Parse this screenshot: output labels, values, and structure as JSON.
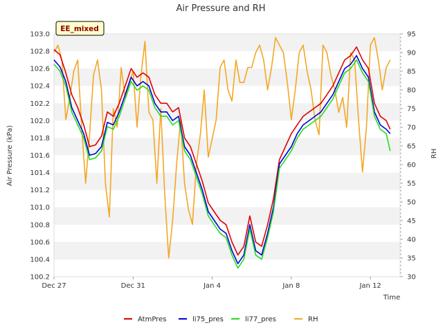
{
  "chart_data": {
    "type": "line",
    "title": "Air Pressure and RH",
    "badge": "EE_mixed",
    "xlabel": "Time",
    "ylabel": "Air Pressure (kPa)",
    "y2label": "RH",
    "x_ticks": [
      "Dec 27",
      "Dec 31",
      "Jan 4",
      "Jan 8",
      "Jan 12"
    ],
    "x_tick_days": [
      0,
      4,
      8,
      12,
      16
    ],
    "xlim": [
      0,
      17.5
    ],
    "ylim": [
      100.2,
      103.0
    ],
    "y_ticks": [
      "100.2",
      "100.4",
      "100.6",
      "100.8",
      "101.0",
      "101.2",
      "101.4",
      "101.6",
      "101.8",
      "102.0",
      "102.2",
      "102.4",
      "102.6",
      "102.8",
      "103.0"
    ],
    "y2lim": [
      30,
      95
    ],
    "y2_ticks": [
      "30",
      "35",
      "40",
      "45",
      "50",
      "55",
      "60",
      "65",
      "70",
      "75",
      "80",
      "85",
      "90",
      "95"
    ],
    "grid": "horizontal bands",
    "legend": "bottom",
    "series": [
      {
        "name": "AtmPres",
        "color": "#dd0000",
        "axis": "left",
        "x": [
          0,
          0.3,
          0.6,
          0.9,
          1.2,
          1.5,
          1.8,
          2.1,
          2.4,
          2.7,
          3.0,
          3.3,
          3.6,
          3.9,
          4.2,
          4.5,
          4.8,
          5.1,
          5.4,
          5.7,
          6.0,
          6.3,
          6.6,
          6.9,
          7.2,
          7.5,
          7.8,
          8.1,
          8.4,
          8.7,
          9.0,
          9.3,
          9.6,
          9.9,
          10.2,
          10.5,
          10.8,
          11.1,
          11.4,
          11.7,
          12.0,
          12.3,
          12.6,
          12.9,
          13.2,
          13.5,
          13.8,
          14.1,
          14.4,
          14.7,
          15.0,
          15.3,
          15.6,
          15.9,
          16.2,
          16.5,
          16.8,
          17.0
        ],
        "y": [
          102.82,
          102.76,
          102.55,
          102.3,
          102.15,
          101.95,
          101.7,
          101.72,
          101.82,
          102.1,
          102.05,
          102.2,
          102.4,
          102.6,
          102.5,
          102.55,
          102.5,
          102.3,
          102.2,
          102.2,
          102.1,
          102.15,
          101.8,
          101.7,
          101.5,
          101.3,
          101.05,
          100.95,
          100.85,
          100.8,
          100.6,
          100.45,
          100.55,
          100.9,
          100.6,
          100.55,
          100.8,
          101.1,
          101.55,
          101.7,
          101.85,
          101.95,
          102.05,
          102.1,
          102.15,
          102.2,
          102.3,
          102.4,
          102.55,
          102.7,
          102.75,
          102.85,
          102.7,
          102.6,
          102.2,
          102.05,
          102.0,
          101.9
        ]
      },
      {
        "name": "li75_pres",
        "color": "#0000dd",
        "axis": "left",
        "x": [
          0,
          0.3,
          0.6,
          0.9,
          1.2,
          1.5,
          1.8,
          2.1,
          2.4,
          2.7,
          3.0,
          3.3,
          3.6,
          3.9,
          4.2,
          4.5,
          4.8,
          5.1,
          5.4,
          5.7,
          6.0,
          6.3,
          6.6,
          6.9,
          7.2,
          7.5,
          7.8,
          8.1,
          8.4,
          8.7,
          9.0,
          9.3,
          9.6,
          9.9,
          10.2,
          10.5,
          10.8,
          11.1,
          11.4,
          11.7,
          12.0,
          12.3,
          12.6,
          12.9,
          13.2,
          13.5,
          13.8,
          14.1,
          14.4,
          14.7,
          15.0,
          15.3,
          15.6,
          15.9,
          16.2,
          16.5,
          16.8,
          17.0
        ],
        "y": [
          102.7,
          102.62,
          102.45,
          102.15,
          102.0,
          101.85,
          101.6,
          101.62,
          101.7,
          101.98,
          101.95,
          102.1,
          102.3,
          102.5,
          102.4,
          102.45,
          102.4,
          102.2,
          102.1,
          102.1,
          102.0,
          102.05,
          101.7,
          101.6,
          101.4,
          101.2,
          100.95,
          100.85,
          100.75,
          100.7,
          100.5,
          100.35,
          100.45,
          100.8,
          100.5,
          100.45,
          100.7,
          101.0,
          101.5,
          101.6,
          101.7,
          101.85,
          101.95,
          102.0,
          102.05,
          102.1,
          102.2,
          102.3,
          102.45,
          102.6,
          102.65,
          102.75,
          102.6,
          102.5,
          102.1,
          101.95,
          101.9,
          101.85
        ]
      },
      {
        "name": "li77_pres",
        "color": "#22dd22",
        "axis": "left",
        "x": [
          0,
          0.3,
          0.6,
          0.9,
          1.2,
          1.5,
          1.8,
          2.1,
          2.4,
          2.7,
          3.0,
          3.3,
          3.6,
          3.9,
          4.2,
          4.5,
          4.8,
          5.1,
          5.4,
          5.7,
          6.0,
          6.3,
          6.6,
          6.9,
          7.2,
          7.5,
          7.8,
          8.1,
          8.4,
          8.7,
          9.0,
          9.3,
          9.6,
          9.9,
          10.2,
          10.5,
          10.8,
          11.1,
          11.4,
          11.7,
          12.0,
          12.3,
          12.6,
          12.9,
          13.2,
          13.5,
          13.8,
          14.1,
          14.4,
          14.7,
          15.0,
          15.3,
          15.6,
          15.9,
          16.2,
          16.5,
          16.8,
          17.0
        ],
        "y": [
          102.65,
          102.57,
          102.4,
          102.1,
          101.95,
          101.8,
          101.55,
          101.57,
          101.65,
          101.93,
          101.9,
          102.05,
          102.25,
          102.45,
          102.35,
          102.4,
          102.35,
          102.15,
          102.05,
          102.05,
          101.95,
          102.0,
          101.65,
          101.55,
          101.35,
          101.15,
          100.9,
          100.8,
          100.7,
          100.65,
          100.45,
          100.3,
          100.4,
          100.75,
          100.45,
          100.4,
          100.65,
          100.95,
          101.45,
          101.55,
          101.65,
          101.8,
          101.9,
          101.95,
          102.0,
          102.05,
          102.15,
          102.25,
          102.4,
          102.55,
          102.6,
          102.7,
          102.55,
          102.45,
          102.05,
          101.9,
          101.85,
          101.65
        ]
      },
      {
        "name": "RH",
        "color": "#f5a623",
        "axis": "right",
        "x": [
          0,
          0.2,
          0.4,
          0.6,
          0.8,
          1.0,
          1.2,
          1.4,
          1.6,
          1.8,
          2.0,
          2.2,
          2.4,
          2.6,
          2.8,
          3.0,
          3.2,
          3.4,
          3.6,
          3.8,
          4.0,
          4.2,
          4.4,
          4.6,
          4.8,
          5.0,
          5.2,
          5.4,
          5.6,
          5.8,
          6.0,
          6.2,
          6.4,
          6.6,
          6.8,
          7.0,
          7.2,
          7.4,
          7.6,
          7.8,
          8.0,
          8.2,
          8.4,
          8.6,
          8.8,
          9.0,
          9.2,
          9.4,
          9.6,
          9.8,
          10.0,
          10.2,
          10.4,
          10.6,
          10.8,
          11.0,
          11.2,
          11.4,
          11.6,
          11.8,
          12.0,
          12.2,
          12.4,
          12.6,
          12.8,
          13.0,
          13.2,
          13.4,
          13.6,
          13.8,
          14.0,
          14.2,
          14.4,
          14.6,
          14.8,
          15.0,
          15.2,
          15.4,
          15.6,
          15.8,
          16.0,
          16.2,
          16.4,
          16.6,
          16.8,
          17.0
        ],
        "y": [
          90,
          92,
          88,
          72,
          78,
          85,
          88,
          70,
          55,
          68,
          84,
          88,
          80,
          55,
          46,
          75,
          70,
          86,
          78,
          82,
          85,
          70,
          84,
          93,
          74,
          72,
          55,
          75,
          52,
          35,
          45,
          60,
          72,
          55,
          48,
          44,
          60,
          68,
          80,
          62,
          67,
          72,
          86,
          88,
          80,
          77,
          88,
          82,
          82,
          86,
          86,
          90,
          92,
          88,
          80,
          86,
          94,
          92,
          90,
          82,
          72,
          80,
          90,
          92,
          85,
          80,
          72,
          68,
          92,
          90,
          84,
          80,
          74,
          78,
          70,
          90,
          88,
          72,
          58,
          70,
          92,
          94,
          88,
          80,
          86,
          88
        ]
      }
    ]
  }
}
